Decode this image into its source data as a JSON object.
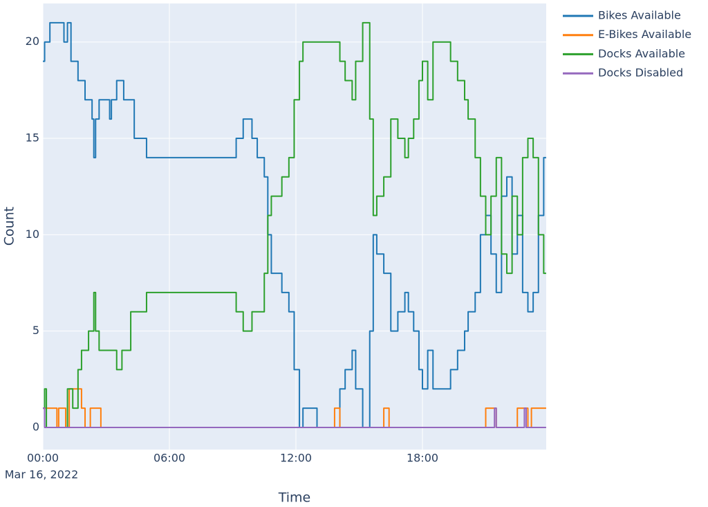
{
  "chart_data": {
    "type": "line",
    "line_shape": "hv",
    "xlabel": "Time",
    "ylabel": "Count",
    "xlim": [
      "2022-03-16 00:00",
      "2022-03-16 23:52"
    ],
    "xticks": [
      {
        "value": "2022-03-16 00:00",
        "label": "00:00"
      },
      {
        "value": "2022-03-16 06:00",
        "label": "06:00"
      },
      {
        "value": "2022-03-16 12:00",
        "label": "12:00"
      },
      {
        "value": "2022-03-16 18:00",
        "label": "18:00"
      }
    ],
    "xtick_date_label": "Mar 16, 2022",
    "ylim": [
      -1.15,
      22
    ],
    "yticks": [
      0,
      5,
      10,
      15,
      20
    ],
    "grid": true,
    "legend": "outside-top-right",
    "series": [
      {
        "name": "Bikes Available",
        "color": "#1f77b4",
        "x": [
          "2022-03-16 00:00",
          "2022-03-16 00:05",
          "2022-03-16 00:20",
          "2022-03-16 01:00",
          "2022-03-16 01:10",
          "2022-03-16 01:20",
          "2022-03-16 01:40",
          "2022-03-16 02:00",
          "2022-03-16 02:20",
          "2022-03-16 02:25",
          "2022-03-16 02:30",
          "2022-03-16 02:40",
          "2022-03-16 03:10",
          "2022-03-16 03:15",
          "2022-03-16 03:30",
          "2022-03-16 03:50",
          "2022-03-16 04:20",
          "2022-03-16 04:55",
          "2022-03-16 09:10",
          "2022-03-16 09:30",
          "2022-03-16 09:55",
          "2022-03-16 10:10",
          "2022-03-16 10:30",
          "2022-03-16 10:40",
          "2022-03-16 10:50",
          "2022-03-16 11:20",
          "2022-03-16 11:40",
          "2022-03-16 11:55",
          "2022-03-16 12:10",
          "2022-03-16 12:20",
          "2022-03-16 13:00",
          "2022-03-16 14:05",
          "2022-03-16 14:20",
          "2022-03-16 14:40",
          "2022-03-16 14:50",
          "2022-03-16 15:10",
          "2022-03-16 15:30",
          "2022-03-16 15:40",
          "2022-03-16 15:50",
          "2022-03-16 16:10",
          "2022-03-16 16:30",
          "2022-03-16 16:50",
          "2022-03-16 17:10",
          "2022-03-16 17:20",
          "2022-03-16 17:35",
          "2022-03-16 17:50",
          "2022-03-16 18:00",
          "2022-03-16 18:15",
          "2022-03-16 18:30",
          "2022-03-16 19:20",
          "2022-03-16 19:40",
          "2022-03-16 20:00",
          "2022-03-16 20:10",
          "2022-03-16 20:30",
          "2022-03-16 20:45",
          "2022-03-16 21:00",
          "2022-03-16 21:15",
          "2022-03-16 21:30",
          "2022-03-16 21:45",
          "2022-03-16 22:00",
          "2022-03-16 22:15",
          "2022-03-16 22:30",
          "2022-03-16 22:45",
          "2022-03-16 23:00",
          "2022-03-16 23:15",
          "2022-03-16 23:30",
          "2022-03-16 23:45",
          "2022-03-16 23:52"
        ],
        "values": [
          19,
          20,
          21,
          20,
          21,
          19,
          18,
          17,
          16,
          14,
          16,
          17,
          16,
          17,
          18,
          17,
          15,
          14,
          15,
          16,
          15,
          14,
          13,
          10,
          8,
          7,
          6,
          3,
          0,
          1,
          0,
          2,
          3,
          4,
          2,
          0,
          5,
          10,
          9,
          8,
          5,
          6,
          7,
          6,
          5,
          3,
          2,
          4,
          2,
          3,
          4,
          5,
          6,
          7,
          10,
          11,
          9,
          7,
          12,
          13,
          9,
          11,
          7,
          6,
          7,
          11,
          14,
          14
        ]
      },
      {
        "name": "E-Bikes Available",
        "color": "#ff7f0e",
        "x": [
          "2022-03-16 00:00",
          "2022-03-16 00:40",
          "2022-03-16 00:45",
          "2022-03-16 01:05",
          "2022-03-16 01:15",
          "2022-03-16 01:50",
          "2022-03-16 02:00",
          "2022-03-16 02:15",
          "2022-03-16 02:45",
          "2022-03-16 13:50",
          "2022-03-16 14:05",
          "2022-03-16 16:10",
          "2022-03-16 16:25",
          "2022-03-16 21:00",
          "2022-03-16 21:30",
          "2022-03-16 22:30",
          "2022-03-16 23:00",
          "2022-03-16 23:10",
          "2022-03-16 23:52"
        ],
        "values": [
          1,
          0,
          1,
          0,
          2,
          1,
          0,
          1,
          0,
          1,
          0,
          1,
          0,
          1,
          0,
          1,
          0,
          1,
          1
        ]
      },
      {
        "name": "Docks Available",
        "color": "#2ca02c",
        "x": [
          "2022-03-16 00:00",
          "2022-03-16 00:05",
          "2022-03-16 00:10",
          "2022-03-16 01:10",
          "2022-03-16 01:25",
          "2022-03-16 01:40",
          "2022-03-16 01:50",
          "2022-03-16 02:10",
          "2022-03-16 02:25",
          "2022-03-16 02:30",
          "2022-03-16 02:40",
          "2022-03-16 03:30",
          "2022-03-16 03:45",
          "2022-03-16 04:10",
          "2022-03-16 04:55",
          "2022-03-16 09:10",
          "2022-03-16 09:30",
          "2022-03-16 09:55",
          "2022-03-16 10:30",
          "2022-03-16 10:40",
          "2022-03-16 10:50",
          "2022-03-16 11:20",
          "2022-03-16 11:40",
          "2022-03-16 11:55",
          "2022-03-16 12:10",
          "2022-03-16 12:20",
          "2022-03-16 14:05",
          "2022-03-16 14:20",
          "2022-03-16 14:40",
          "2022-03-16 14:50",
          "2022-03-16 15:10",
          "2022-03-16 15:30",
          "2022-03-16 15:40",
          "2022-03-16 15:50",
          "2022-03-16 16:10",
          "2022-03-16 16:30",
          "2022-03-16 16:50",
          "2022-03-16 17:10",
          "2022-03-16 17:20",
          "2022-03-16 17:35",
          "2022-03-16 17:50",
          "2022-03-16 18:00",
          "2022-03-16 18:15",
          "2022-03-16 18:30",
          "2022-03-16 19:20",
          "2022-03-16 19:40",
          "2022-03-16 20:00",
          "2022-03-16 20:10",
          "2022-03-16 20:30",
          "2022-03-16 20:45",
          "2022-03-16 21:00",
          "2022-03-16 21:15",
          "2022-03-16 21:30",
          "2022-03-16 21:45",
          "2022-03-16 22:00",
          "2022-03-16 22:15",
          "2022-03-16 22:30",
          "2022-03-16 22:45",
          "2022-03-16 23:00",
          "2022-03-16 23:15",
          "2022-03-16 23:30",
          "2022-03-16 23:45",
          "2022-03-16 23:52"
        ],
        "values": [
          1,
          2,
          0,
          2,
          1,
          3,
          4,
          5,
          7,
          5,
          4,
          3,
          4,
          6,
          7,
          6,
          5,
          6,
          8,
          11,
          12,
          13,
          14,
          17,
          19,
          20,
          19,
          18,
          17,
          19,
          21,
          16,
          11,
          12,
          13,
          16,
          15,
          14,
          15,
          16,
          18,
          19,
          17,
          20,
          19,
          18,
          17,
          16,
          14,
          12,
          10,
          12,
          14,
          9,
          8,
          12,
          10,
          14,
          15,
          14,
          10,
          8,
          8
        ]
      },
      {
        "name": "Docks Disabled",
        "color": "#9467bd",
        "x": [
          "2022-03-16 00:00",
          "2022-03-16 00:05",
          "2022-03-16 21:25",
          "2022-03-16 21:30",
          "2022-03-16 22:50",
          "2022-03-16 22:55",
          "2022-03-16 23:52"
        ],
        "values": [
          1,
          0,
          1,
          0,
          1,
          0,
          0
        ]
      }
    ]
  }
}
